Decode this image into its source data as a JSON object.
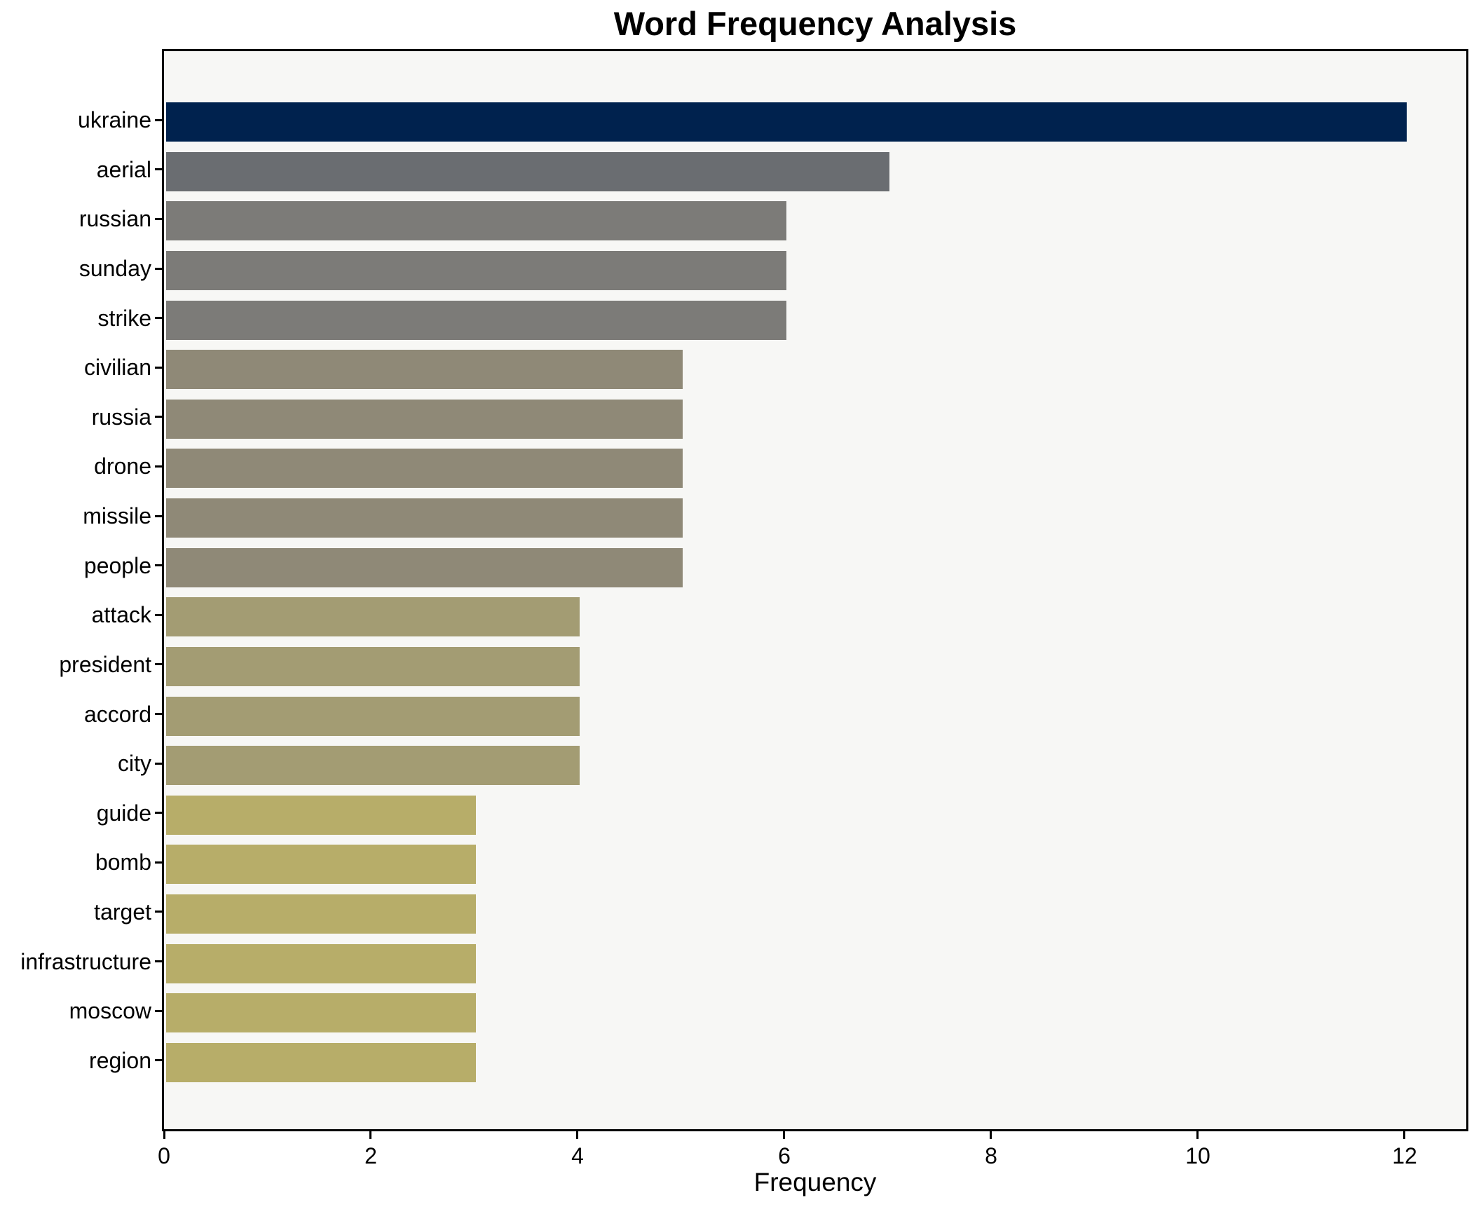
{
  "figure": {
    "background": "#ffffff",
    "plot_background": "#f7f7f5",
    "spine_color": "#000000"
  },
  "chart_data": {
    "type": "bar",
    "orientation": "horizontal",
    "title": "Word Frequency Analysis",
    "xlabel": "Frequency",
    "ylabel": "",
    "categories": [
      "ukraine",
      "aerial",
      "russian",
      "sunday",
      "strike",
      "civilian",
      "russia",
      "drone",
      "missile",
      "people",
      "attack",
      "president",
      "accord",
      "city",
      "guide",
      "bomb",
      "target",
      "infrastructure",
      "moscow",
      "region"
    ],
    "values": [
      12,
      7,
      6,
      6,
      6,
      5,
      5,
      5,
      5,
      5,
      4,
      4,
      4,
      4,
      3,
      3,
      3,
      3,
      3,
      3
    ],
    "bar_colors": [
      "#00224e",
      "#6a6d71",
      "#7c7b78",
      "#7c7b78",
      "#7c7b78",
      "#8f8977",
      "#8f8977",
      "#8f8977",
      "#8f8977",
      "#8f8977",
      "#a39c73",
      "#a39c73",
      "#a39c73",
      "#a39c73",
      "#b7ad69",
      "#b7ad69",
      "#b7ad69",
      "#b7ad69",
      "#b7ad69",
      "#b7ad69"
    ],
    "value_color_map": {
      "12": "#00224e",
      "7": "#6a6d71",
      "6": "#7c7b78",
      "5": "#8f8977",
      "4": "#a39c73",
      "3": "#b7ad69"
    },
    "xticks": [
      0,
      2,
      4,
      6,
      8,
      10,
      12
    ],
    "xlim": [
      0,
      12.6
    ],
    "grid": false,
    "legend": false
  }
}
